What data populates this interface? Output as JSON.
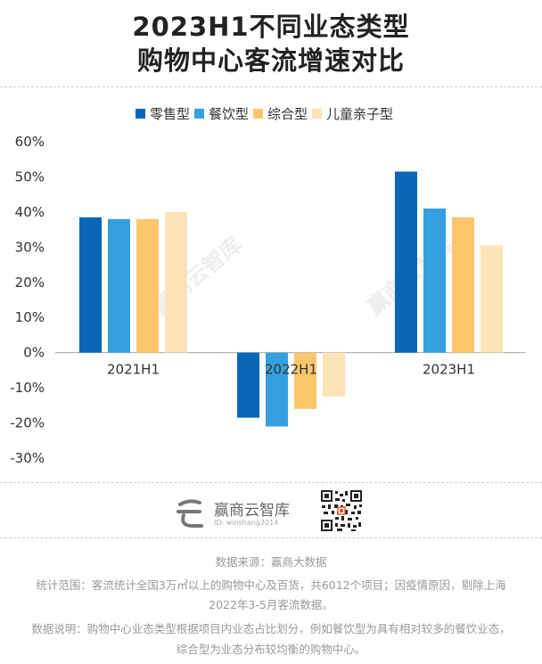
{
  "title": {
    "line1": "2023H1不同业态类型",
    "line2": "购物中心客流增速对比"
  },
  "chart_data": {
    "type": "bar",
    "categories": [
      "2021H1",
      "2022H1",
      "2023H1"
    ],
    "series": [
      {
        "name": "零售型",
        "color": "#0a66b7",
        "values": [
          38.5,
          -18.5,
          51.5
        ]
      },
      {
        "name": "餐饮型",
        "color": "#35a0e0",
        "values": [
          38.0,
          -21.0,
          41.0
        ]
      },
      {
        "name": "综合型",
        "color": "#fcc66c",
        "values": [
          38.0,
          -16.0,
          38.5
        ]
      },
      {
        "name": "儿童亲子型",
        "color": "#fde3b6",
        "values": [
          40.0,
          -12.5,
          30.5
        ]
      }
    ],
    "yticks": [
      "60%",
      "50%",
      "40%",
      "30%",
      "20%",
      "10%",
      "0%",
      "-10%",
      "-20%",
      "-30%"
    ],
    "ylim": [
      -30,
      60
    ],
    "legend": "top-center"
  },
  "watermark": "赢商云智库",
  "logo": {
    "name": "赢商云智库",
    "id": "ID: winshang2014"
  },
  "footer": {
    "source": "数据来源：赢商大数据",
    "scope1": "统计范围：客流统计全国3万㎡以上的购物中心及百货，共6012个项目；因疫情原因，剔除上海",
    "scope2": "2022年3-5月客流数据。",
    "note1": "数据说明：购物中心业态类型根据项目内业态占比划分，例如餐饮型为具有相对较多的餐饮业态，",
    "note2": "综合型为业态分布较均衡的购物中心。"
  }
}
